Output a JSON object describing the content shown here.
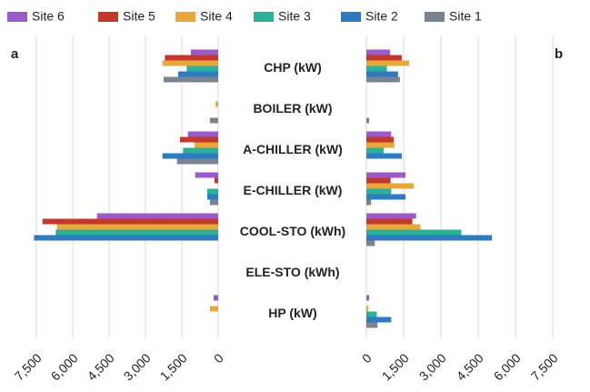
{
  "chart_data": {
    "type": "bar",
    "orientation": "horizontal",
    "categories": [
      "CHP (kW)",
      "BOILER (kW)",
      "A-CHILLER (kW)",
      "E-CHILLER  (kW)",
      "COOL-STO (kWh)",
      "ELE-STO (kWh)",
      "HP (kW)"
    ],
    "legend": "top",
    "series": [
      {
        "name": "Site 6",
        "color": "#9b59c9"
      },
      {
        "name": "Site 5",
        "color": "#c0392b"
      },
      {
        "name": "Site 4",
        "color": "#e8a838"
      },
      {
        "name": "Site 3",
        "color": "#2bb09a"
      },
      {
        "name": "Site 2",
        "color": "#2e7bbf"
      },
      {
        "name": "Site 1",
        "color": "#7a8491"
      }
    ],
    "panels": [
      {
        "label": "a",
        "x_reversed": true,
        "grid": true,
        "xlim": [
          0,
          7500
        ],
        "xticks": [
          {
            "value": 7500,
            "label": "7,500"
          },
          {
            "value": 6000,
            "label": "6,000"
          },
          {
            "value": 4500,
            "label": "4,500"
          },
          {
            "value": 3000,
            "label": "3,000"
          },
          {
            "value": 1500,
            "label": "1,500"
          },
          0
        ],
        "series": [
          {
            "values": [
              1125,
              0,
              1250,
              950,
              5000,
              0,
              190
            ]
          },
          {
            "values": [
              2200,
              0,
              1575,
              150,
              7250,
              0,
              0
            ]
          },
          {
            "values": [
              2300,
              110,
              975,
              0,
              6650,
              0,
              340
            ]
          },
          {
            "values": [
              1300,
              0,
              1450,
              450,
              6700,
              0,
              0
            ]
          },
          {
            "values": [
              1650,
              0,
              2300,
              450,
              7600,
              0,
              0
            ]
          },
          {
            "values": [
              2250,
              340,
              1700,
              340,
              0,
              0,
              0
            ]
          }
        ]
      },
      {
        "label": "b",
        "x_reversed": false,
        "grid": true,
        "xlim": [
          0,
          7500
        ],
        "xticks": [
          0,
          {
            "value": 1500,
            "label": "1,500"
          },
          {
            "value": 3000,
            "label": "3,000"
          },
          {
            "value": 4500,
            "label": "4,500"
          },
          {
            "value": 6000,
            "label": "6,000"
          },
          {
            "value": 7500,
            "label": "7,500"
          }
        ],
        "series": [
          {
            "values": [
              950,
              0,
              1000,
              1575,
              2000,
              0,
              110
            ]
          },
          {
            "values": [
              1425,
              0,
              1100,
              975,
              1850,
              0,
              0
            ]
          },
          {
            "values": [
              1725,
              0,
              1125,
              1900,
              2175,
              0,
              75
            ]
          },
          {
            "values": [
              825,
              0,
              700,
              1000,
              3825,
              0,
              420
            ]
          },
          {
            "values": [
              1275,
              0,
              1425,
              1575,
              5050,
              0,
              1000
            ]
          },
          {
            "values": [
              1350,
              110,
              0,
              190,
              340,
              0,
              450
            ]
          }
        ]
      }
    ]
  }
}
